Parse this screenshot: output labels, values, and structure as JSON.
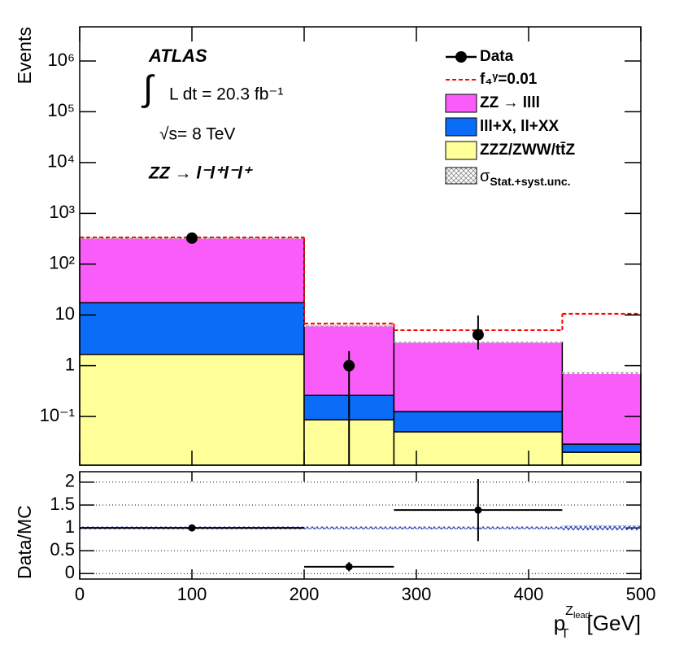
{
  "chart_data": {
    "type": "stacked_histogram",
    "ylabel": "Events",
    "xlabel": {
      "symbol": "p",
      "sub": "T",
      "sup": "Z",
      "sup_sub": "lead",
      "unit": "[GeV]"
    },
    "annotations": {
      "experiment": "ATLAS",
      "integral": "∫",
      "lumi": "L dt = 20.3 fb⁻¹",
      "energy": "√s= 8 TeV",
      "channel": "ZZ → l⁻l⁺l⁻l⁺"
    },
    "bins": [
      0,
      200,
      280,
      430,
      500
    ],
    "log_y": true,
    "xlim": [
      0,
      500
    ],
    "xticks": [
      0,
      100,
      200,
      300,
      400,
      500
    ],
    "ylim": [
      0.011,
      4700000
    ],
    "yticks": [
      {
        "value": 0.1,
        "label": "10⁻¹"
      },
      1,
      10,
      {
        "value": 100,
        "label": "10²"
      },
      {
        "value": 1000,
        "label": "10³"
      },
      {
        "value": 10000,
        "label": "10⁴"
      },
      {
        "value": 100000,
        "label": "10⁵"
      },
      {
        "value": 1000000,
        "label": "10⁶"
      }
    ],
    "series": [
      {
        "name": "ZZ → llll",
        "color": "#fa5cf9",
        "values": [
          307,
          5.84,
          2.78,
          0.69
        ]
      },
      {
        "name": "lll+X, ll+XX",
        "color": "#0a6cf7",
        "values": [
          15.7,
          0.174,
          0.075,
          0.0088
        ]
      },
      {
        "name": "ZZZ/ZWW/tt̄Z",
        "color": "#ffff99",
        "values": [
          1.67,
          0.086,
          0.05,
          0.0198
        ]
      }
    ],
    "signal": {
      "name": "f₄ᵞ=0.01",
      "color": "#ff0000",
      "values": [
        337,
        6.8,
        5.0,
        10.5
      ]
    },
    "data": {
      "name": "Data",
      "x": [
        100,
        240,
        355
      ],
      "values": [
        325,
        1,
        4.07
      ],
      "yerr_low": [
        18,
        1,
        1.98
      ],
      "yerr_high": [
        18,
        0.94,
        5.7
      ]
    },
    "uncertainty": {
      "symbol": "σ",
      "subscript": "Stat.+syst.unc.",
      "values": [
        0.03,
        0.03,
        0.03,
        0.05
      ]
    },
    "ratio": {
      "ylabel": "Data/MC",
      "ylim": [
        -0.12,
        2.23
      ],
      "yticks": [
        0,
        0.5,
        1,
        1.5,
        2
      ],
      "grid": true,
      "x": [
        100,
        240,
        355
      ],
      "xerr": [
        100,
        40,
        75
      ],
      "values": [
        1,
        0.15,
        1.39
      ],
      "yerr_low": [
        0.06,
        0.1,
        0.68
      ],
      "yerr_high": [
        0.06,
        0.1,
        0.68
      ]
    }
  }
}
